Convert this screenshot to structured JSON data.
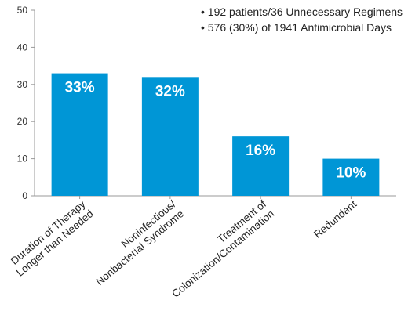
{
  "notes": [
    "• 192 patients/36 Unnecessary Regimens",
    "• 576 (30%) of 1941 Antimicrobial Days"
  ],
  "colors": {
    "bar": "#0096d6",
    "axis": "#999999",
    "text": "#222222"
  },
  "chart_data": {
    "type": "bar",
    "categories": [
      [
        "Duration of Therapy",
        "Longer than Needed"
      ],
      [
        "Noninfectious/",
        "Nonbacterial Syndrome"
      ],
      [
        "Treatment of",
        "Colonization/Contamination"
      ],
      [
        "Redundant"
      ]
    ],
    "values": [
      33,
      32,
      16,
      10
    ],
    "data_labels": [
      "33%",
      "32%",
      "16%",
      "10%"
    ],
    "yticks": [
      0,
      10,
      20,
      30,
      40,
      50
    ],
    "ylim": [
      0,
      50
    ],
    "title": "",
    "xlabel": "",
    "ylabel": "",
    "grid": false
  }
}
